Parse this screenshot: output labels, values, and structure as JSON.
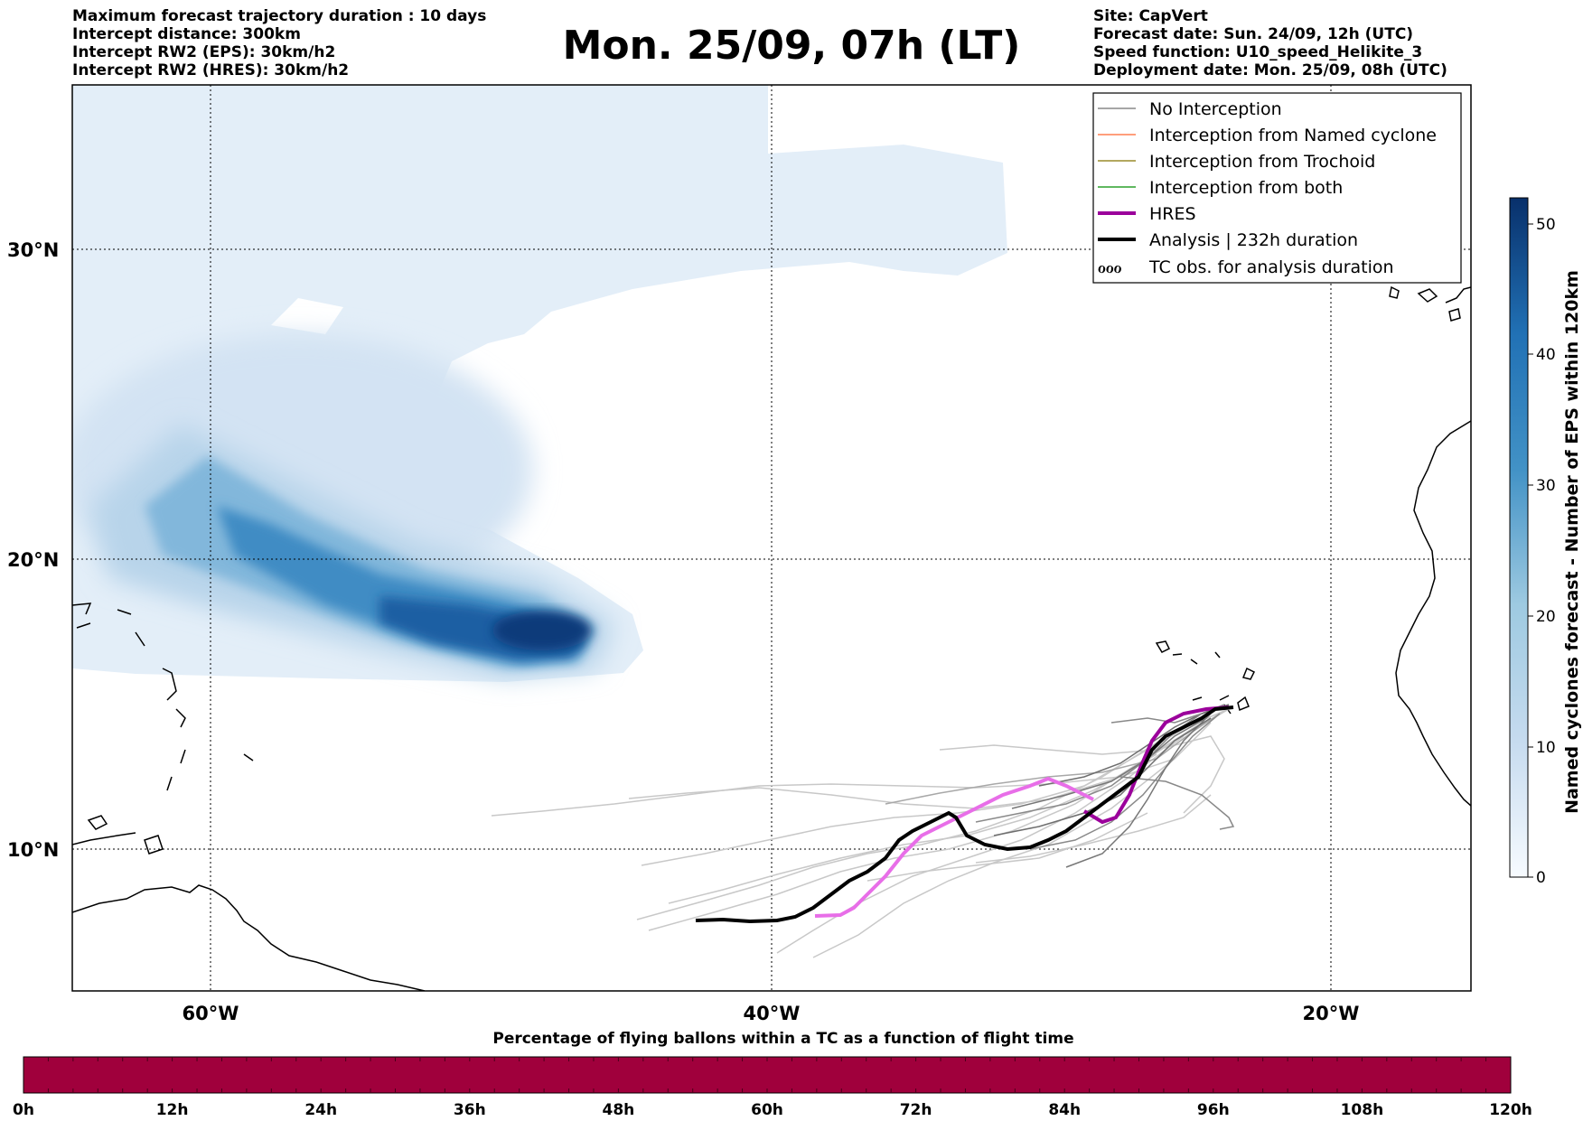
{
  "header": {
    "left_lines": [
      "Maximum forecast trajectory duration : 10 days",
      "Intercept distance: 300km",
      "Intercept RW2 (EPS):  30km/h2",
      "Intercept RW2 (HRES): 30km/h2"
    ],
    "title": "Mon. 25/09, 07h (LT)",
    "right_lines": [
      "Site: CapVert",
      "Forecast date: Sun. 24/09, 12h (UTC)",
      "Speed function: U10_speed_Helikite_3",
      "Deployment date: Mon. 25/09, 08h (UTC)"
    ]
  },
  "map": {
    "lat_labels": [
      "30°N",
      "20°N",
      "10°N"
    ],
    "lon_labels": [
      "60°W",
      "40°W",
      "20°W"
    ],
    "gridlines": "dotted",
    "legend": {
      "placement": "top-right",
      "items": [
        {
          "label": "No Interception",
          "color": "#888888",
          "style": "thin"
        },
        {
          "label": "Interception from Named cyclone",
          "color": "#ff7f50",
          "style": "thin"
        },
        {
          "label": "Interception from Trochoid",
          "color": "#9a8c2a",
          "style": "thin"
        },
        {
          "label": "Interception from both",
          "color": "#2ca02c",
          "style": "thin"
        },
        {
          "label": "HRES",
          "color": "#8b008b",
          "style": "thick"
        },
        {
          "label": "Analysis | 232h duration",
          "color": "#000000",
          "style": "thick"
        },
        {
          "label": "TC obs. for analysis duration",
          "color": "#000000",
          "style": "symbol",
          "symbol": "ℴℴℴ"
        }
      ]
    },
    "colors": {
      "density_light": "#e3eef8",
      "density_dark": "#08306b",
      "hres": "#e86ee8",
      "hres_dark": "#9b009b",
      "analysis": "#000000",
      "no_interception": "#888888"
    }
  },
  "colorbar": {
    "label": "Named cyclones forecast - Number of EPS within 120km",
    "ticks": [
      "0",
      "10",
      "20",
      "30",
      "40",
      "50"
    ],
    "min": 0,
    "max": 52
  },
  "bottom_bar": {
    "title": "Percentage of flying ballons within a TC as a function of flight time",
    "ticks": [
      "0h",
      "12h",
      "24h",
      "36h",
      "48h",
      "60h",
      "72h",
      "84h",
      "96h",
      "108h",
      "120h"
    ],
    "color": "#a0003c"
  }
}
